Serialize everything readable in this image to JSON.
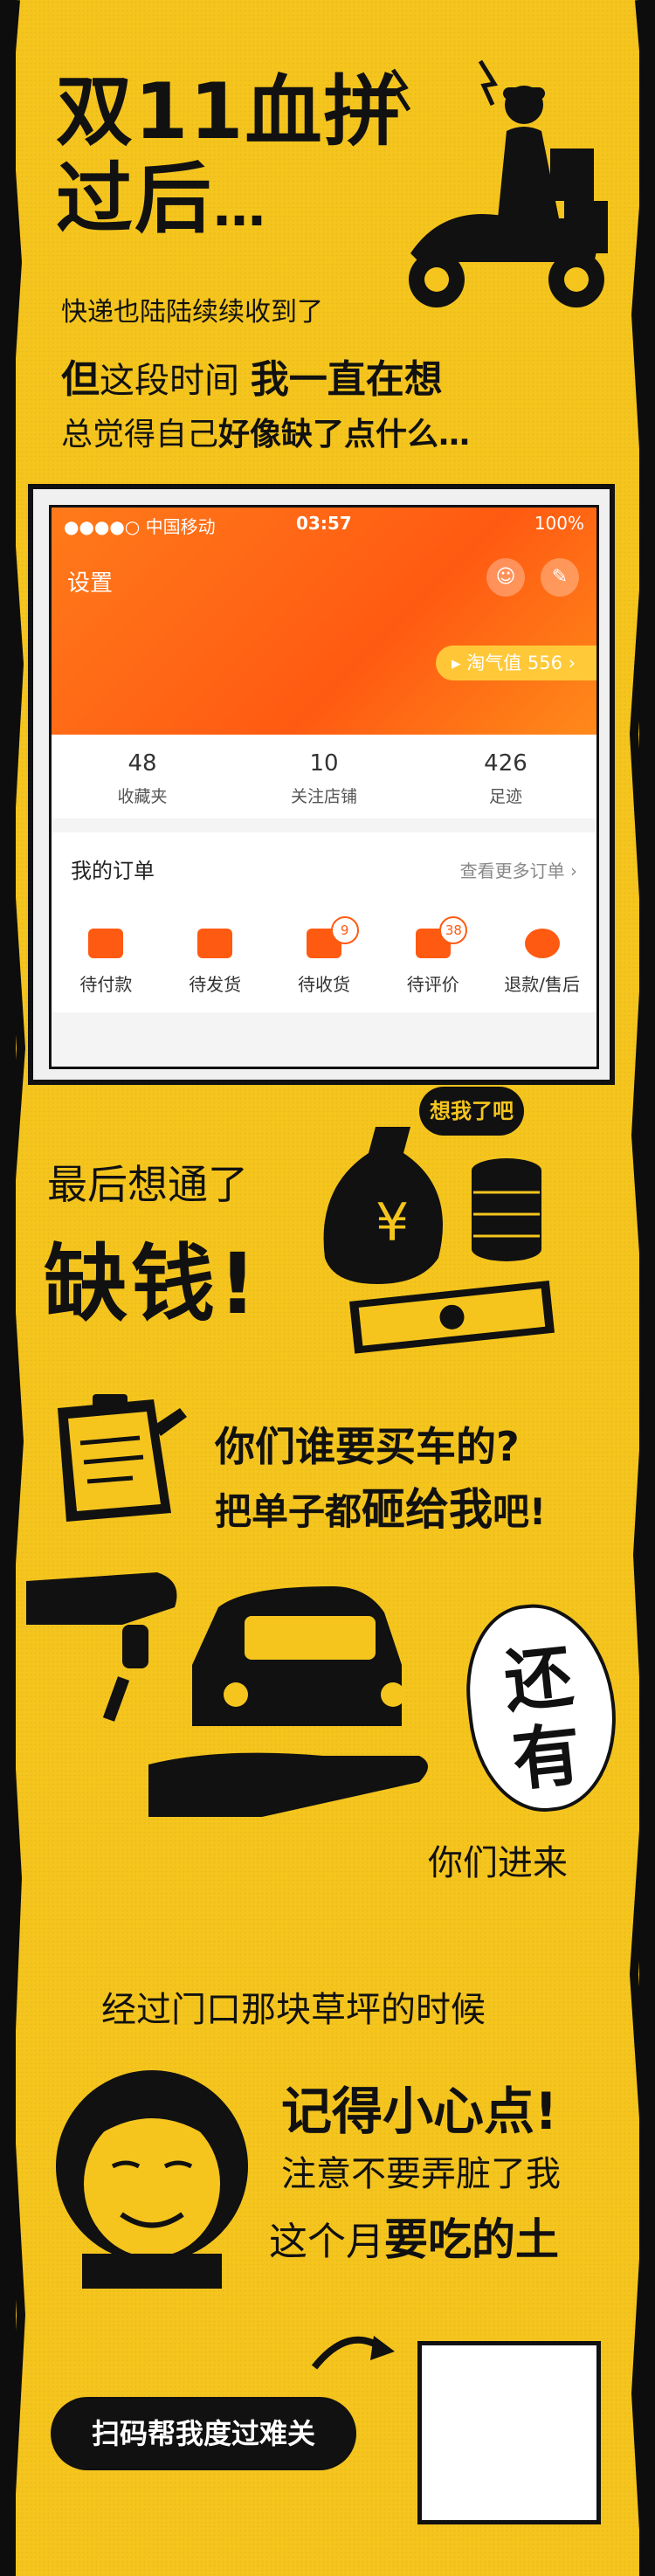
{
  "hero": {
    "title_line1": "双11血拼",
    "title_line2": "过后",
    "title_dots": "…",
    "line_a": "快递也陆陆续续收到了",
    "line_b_lead": "但",
    "line_b_mid": "这段时间 ",
    "line_b_bold": "我一直在想",
    "line_c_normal": "总觉得自己",
    "line_c_bold": "好像缺了点什么…"
  },
  "phone": {
    "status": {
      "carrier": "●●●●○ 中国移动",
      "time": "03:57",
      "battery": "100%"
    },
    "settings_label": "设置",
    "taoqi_label": "淘气值 556",
    "stats": [
      {
        "num": "48",
        "label": "收藏夹"
      },
      {
        "num": "10",
        "label": "关注店铺"
      },
      {
        "num": "426",
        "label": "足迹"
      }
    ],
    "orders_title": "我的订单",
    "orders_more": "查看更多订单",
    "orders": [
      {
        "label": "待付款",
        "badge": ""
      },
      {
        "label": "待发货",
        "badge": ""
      },
      {
        "label": "待收货",
        "badge": "9"
      },
      {
        "label": "待评价",
        "badge": "38"
      },
      {
        "label": "退款/售后",
        "badge": ""
      }
    ]
  },
  "money": {
    "line1": "最后想通了",
    "line2": "缺钱!",
    "bubble": "想我了吧"
  },
  "car": {
    "line1": "你们谁要买车的?",
    "line2_a": "把单子都",
    "line2_b": "砸给我",
    "line2_c": "吧!"
  },
  "also": {
    "char1": "还",
    "char2": "有",
    "come_in": "你们进来"
  },
  "lawn": {
    "line1": "经过门口那块草坪的时候",
    "care1": "记得小心点!",
    "care2": "注意不要弄脏了我",
    "care3_a": "这个月",
    "care3_b": "要吃的土"
  },
  "cta": {
    "scan_label": "扫码帮我度过难关"
  },
  "colors": {
    "paper": "#f5c51e",
    "ink": "#111111",
    "accent": "#ff5a12"
  }
}
